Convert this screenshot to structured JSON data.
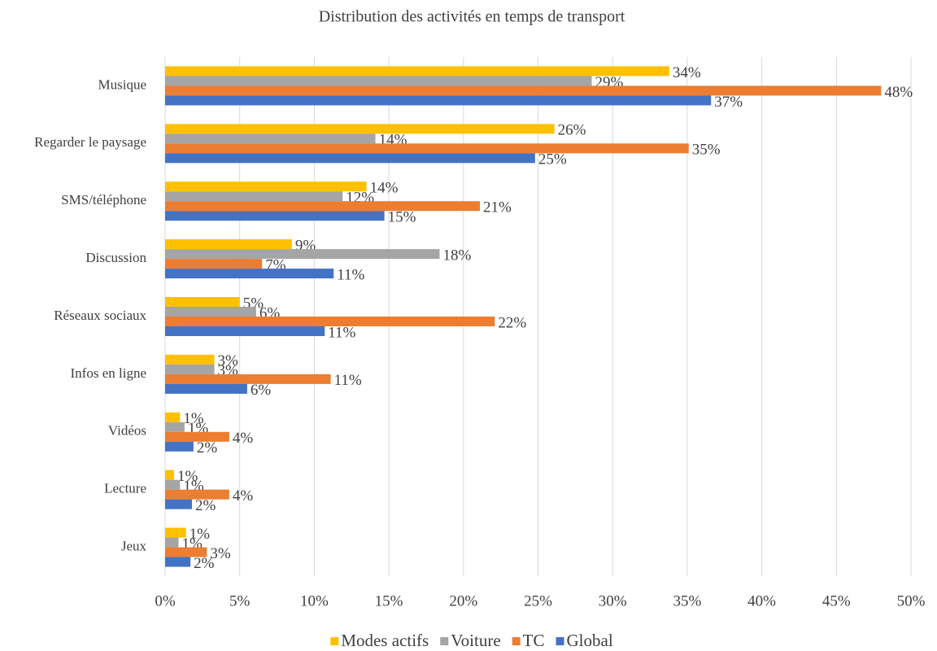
{
  "chart_data": {
    "type": "bar",
    "orientation": "horizontal",
    "title": "Distribution des activités en temps de transport",
    "categories": [
      "Musique",
      "Regarder le paysage",
      "SMS/téléphone",
      "Discussion",
      "Réseaux sociaux",
      "Infos en ligne",
      "Vidéos",
      "Lecture",
      "Jeux"
    ],
    "series": [
      {
        "name": "Modes actifs",
        "color": "#ffc000",
        "values": [
          33.8,
          26.1,
          13.5,
          8.5,
          5.0,
          3.3,
          1.0,
          0.6,
          1.4
        ],
        "value_labels": [
          "34%",
          "26%",
          "14%",
          "9%",
          "5%",
          "3%",
          "1%",
          "1%",
          "1%"
        ]
      },
      {
        "name": "Voiture",
        "color": "#a5a5a5",
        "values": [
          28.6,
          14.1,
          11.9,
          18.4,
          6.1,
          3.3,
          1.3,
          1.0,
          0.9
        ],
        "value_labels": [
          "29%",
          "14%",
          "12%",
          "18%",
          "6%",
          "3%",
          "1%",
          "1%",
          "1%"
        ]
      },
      {
        "name": "TC",
        "color": "#ed7d31",
        "values": [
          48.0,
          35.1,
          21.1,
          6.5,
          22.1,
          11.1,
          4.3,
          4.3,
          2.8
        ],
        "value_labels": [
          "48%",
          "35%",
          "21%",
          "7%",
          "22%",
          "11%",
          "4%",
          "4%",
          "3%"
        ]
      },
      {
        "name": "Global",
        "color": "#4472c4",
        "values": [
          36.6,
          24.8,
          14.7,
          11.3,
          10.7,
          5.5,
          1.9,
          1.8,
          1.7
        ],
        "value_labels": [
          "37%",
          "25%",
          "15%",
          "11%",
          "11%",
          "6%",
          "2%",
          "2%",
          "2%"
        ]
      }
    ],
    "xlim": [
      0,
      50
    ],
    "xticks": [
      {
        "value": 0,
        "label": "0%"
      },
      {
        "value": 5,
        "label": "5%"
      },
      {
        "value": 10,
        "label": "10%"
      },
      {
        "value": 15,
        "label": "15%"
      },
      {
        "value": 20,
        "label": "20%"
      },
      {
        "value": 25,
        "label": "25%"
      },
      {
        "value": 30,
        "label": "30%"
      },
      {
        "value": 35,
        "label": "35%"
      },
      {
        "value": 40,
        "label": "40%"
      },
      {
        "value": 45,
        "label": "45%"
      },
      {
        "value": 50,
        "label": "50%"
      }
    ],
    "grid": true,
    "legend": "bottom"
  }
}
